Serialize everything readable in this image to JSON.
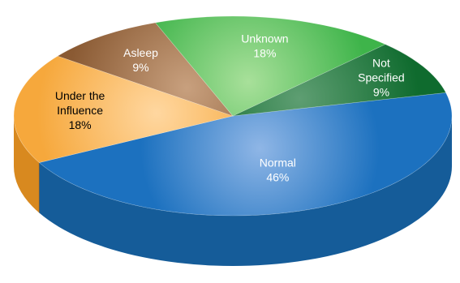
{
  "chart_data": {
    "type": "pie",
    "style": "3d",
    "legend": "none",
    "slices": [
      {
        "name": "Normal",
        "value": 46,
        "label": "46%",
        "name_lines": [
          "Normal"
        ],
        "color": "#1c71bf",
        "side_color": "#155c99",
        "highlight": "#8fb6e6",
        "text_color": "#ffffff"
      },
      {
        "name": "Under the Influence",
        "value": 18,
        "label": "18%",
        "name_lines": [
          "Under the",
          "Influence"
        ],
        "color": "#f6a83c",
        "side_color": "#d8891f",
        "highlight": "#ffd7a0",
        "text_color": "#000000"
      },
      {
        "name": "Asleep",
        "value": 9,
        "label": "9%",
        "name_lines": [
          "Asleep"
        ],
        "color": "#8a5a33",
        "side_color": "#6b4526",
        "highlight": "#c8a07e",
        "text_color": "#ffffff"
      },
      {
        "name": "Unknown",
        "value": 18,
        "label": "18%",
        "name_lines": [
          "Unknown"
        ],
        "color": "#3eb44a",
        "side_color": "#2f8f39",
        "highlight": "#a8e09a",
        "text_color": "#ffffff"
      },
      {
        "name": "Not Specified",
        "value": 9,
        "label": "9%",
        "name_lines": [
          "Not",
          "Specified"
        ],
        "color": "#0f6b2e",
        "side_color": "#0b5224",
        "highlight": "#5e9e72",
        "text_color": "#ffffff"
      }
    ]
  }
}
